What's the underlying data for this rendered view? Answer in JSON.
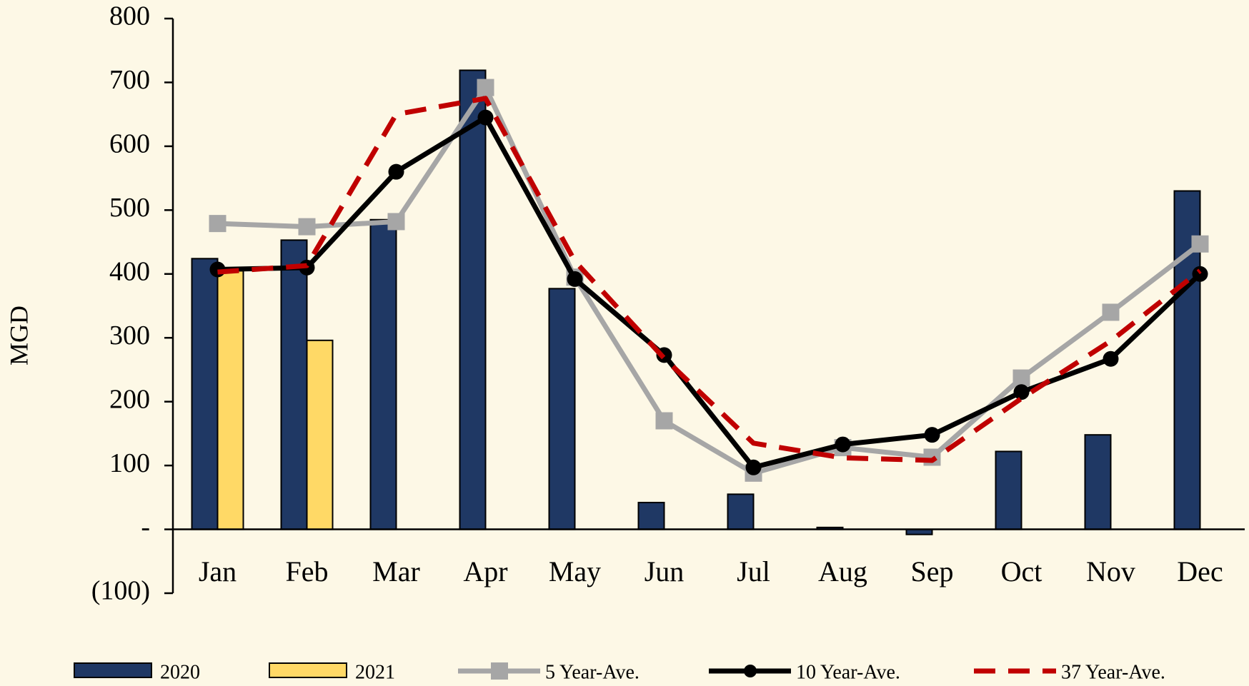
{
  "chart_data": {
    "type": "bar",
    "y_label": "MGD",
    "categories": [
      "Jan",
      "Feb",
      "Mar",
      "Apr",
      "May",
      "Jun",
      "Jul",
      "Aug",
      "Sep",
      "Oct",
      "Nov",
      "Dec"
    ],
    "series": [
      {
        "name": "2020",
        "type": "bar",
        "color": "#1f3864",
        "values": [
          424,
          453,
          485,
          719,
          377,
          42,
          55,
          3,
          -8,
          122,
          148,
          530
        ]
      },
      {
        "name": "2021",
        "type": "bar",
        "color": "#ffd966",
        "values": [
          405,
          296,
          null,
          null,
          null,
          null,
          null,
          null,
          null,
          null,
          null,
          null
        ]
      },
      {
        "name": "5 Year-Ave.",
        "type": "line",
        "color": "#a6a6a6",
        "marker": "square",
        "values": [
          479,
          474,
          482,
          692,
          395,
          170,
          88,
          128,
          113,
          237,
          340,
          447
        ]
      },
      {
        "name": "10 Year-Ave.",
        "type": "line",
        "color": "#000000",
        "marker": "circle",
        "values": [
          407,
          410,
          560,
          645,
          392,
          273,
          97,
          133,
          148,
          215,
          267,
          400
        ]
      },
      {
        "name": "37 Year-Ave.",
        "type": "line",
        "color": "#c00000",
        "dashed": true,
        "values": [
          403,
          413,
          650,
          675,
          420,
          268,
          135,
          112,
          108,
          205,
          295,
          405
        ]
      }
    ],
    "ylim": [
      -100,
      800
    ],
    "yticks": [
      {
        "value": -100,
        "label": "(100)"
      },
      {
        "value": 0,
        "label": "-"
      },
      100,
      200,
      300,
      400,
      500,
      600,
      700,
      800
    ],
    "legend": "bottom"
  }
}
